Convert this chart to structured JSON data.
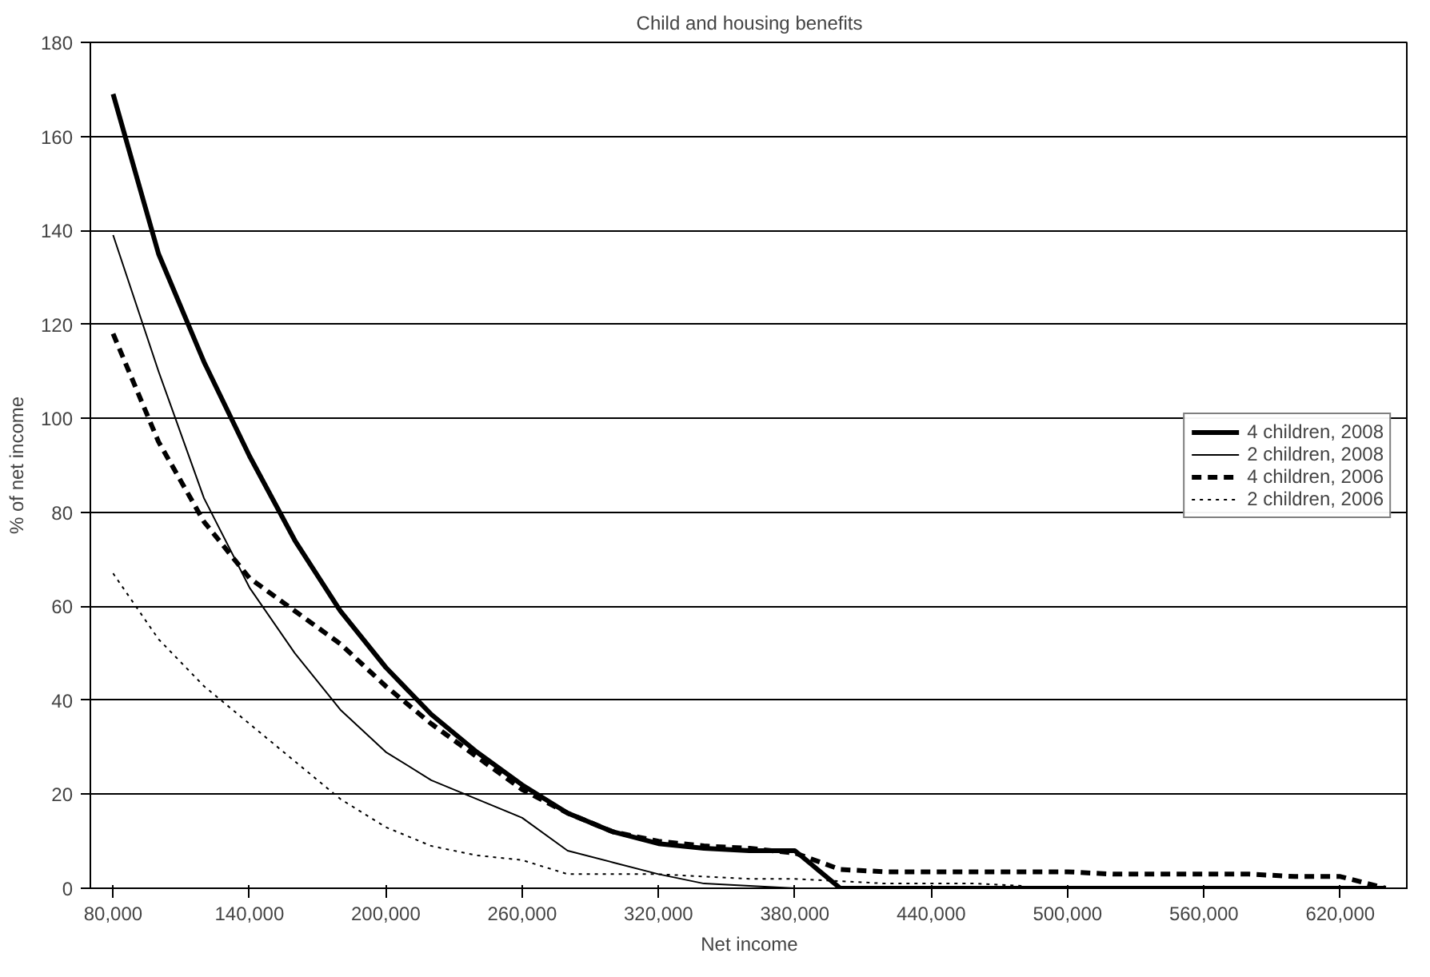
{
  "chart_data": {
    "type": "line",
    "title": "Child and housing benefits",
    "xlabel": "Net income",
    "ylabel": "% of net income",
    "x": [
      80000,
      100000,
      120000,
      140000,
      160000,
      180000,
      200000,
      220000,
      240000,
      260000,
      280000,
      300000,
      320000,
      340000,
      360000,
      380000,
      400000,
      420000,
      440000,
      460000,
      480000,
      500000,
      520000,
      540000,
      560000,
      580000,
      600000,
      620000,
      640000
    ],
    "xlim": [
      70000,
      650000
    ],
    "xticks": [
      {
        "value": 80000,
        "label": "80,000"
      },
      {
        "value": 140000,
        "label": "140,000"
      },
      {
        "value": 200000,
        "label": "200,000"
      },
      {
        "value": 260000,
        "label": "260,000"
      },
      {
        "value": 320000,
        "label": "320,000"
      },
      {
        "value": 380000,
        "label": "380,000"
      },
      {
        "value": 440000,
        "label": "440,000"
      },
      {
        "value": 500000,
        "label": "500,000"
      },
      {
        "value": 560000,
        "label": "560,000"
      },
      {
        "value": 620000,
        "label": "620,000"
      }
    ],
    "ylim": [
      0,
      180
    ],
    "yticks": [
      0,
      20,
      40,
      60,
      80,
      100,
      120,
      140,
      160,
      180
    ],
    "grid": "y",
    "legend": "right",
    "marker": "none",
    "series": [
      {
        "name": "4 children, 2008",
        "color": "#000000",
        "line_style": "solid",
        "values": [
          169,
          135,
          112,
          92,
          74,
          59,
          47,
          37,
          29,
          22,
          16,
          12,
          9.5,
          8.5,
          8,
          8,
          0,
          0,
          0,
          0,
          0,
          0,
          0,
          0,
          0,
          0,
          0,
          0,
          0
        ]
      },
      {
        "name": "2 children, 2008",
        "color": "#000000",
        "line_style": "solid",
        "values": [
          139,
          110,
          83,
          64,
          50,
          38,
          29,
          23,
          19,
          15,
          8,
          5.5,
          3,
          1,
          0.5,
          0,
          0,
          0,
          0,
          0,
          0,
          0,
          0,
          0,
          0,
          0,
          0,
          0,
          0
        ]
      },
      {
        "name": "4 children, 2006",
        "color": "#000000",
        "line_style": "dashed",
        "values": [
          118,
          95,
          78,
          66,
          59,
          52,
          43,
          35,
          28,
          21,
          16,
          12,
          10,
          9,
          8.5,
          7.5,
          4,
          3.5,
          3.5,
          3.5,
          3.5,
          3.5,
          3,
          3,
          3,
          3,
          2.5,
          2.5,
          0
        ]
      },
      {
        "name": "2 children, 2006",
        "color": "#000000",
        "line_style": "dotted",
        "values": [
          67,
          53,
          43,
          35,
          27,
          19,
          13,
          9,
          7,
          6,
          3,
          3,
          3,
          2.5,
          2,
          2,
          1.5,
          1,
          1,
          1,
          0.5,
          null,
          null,
          null,
          null,
          null,
          null,
          null,
          null
        ]
      }
    ]
  }
}
